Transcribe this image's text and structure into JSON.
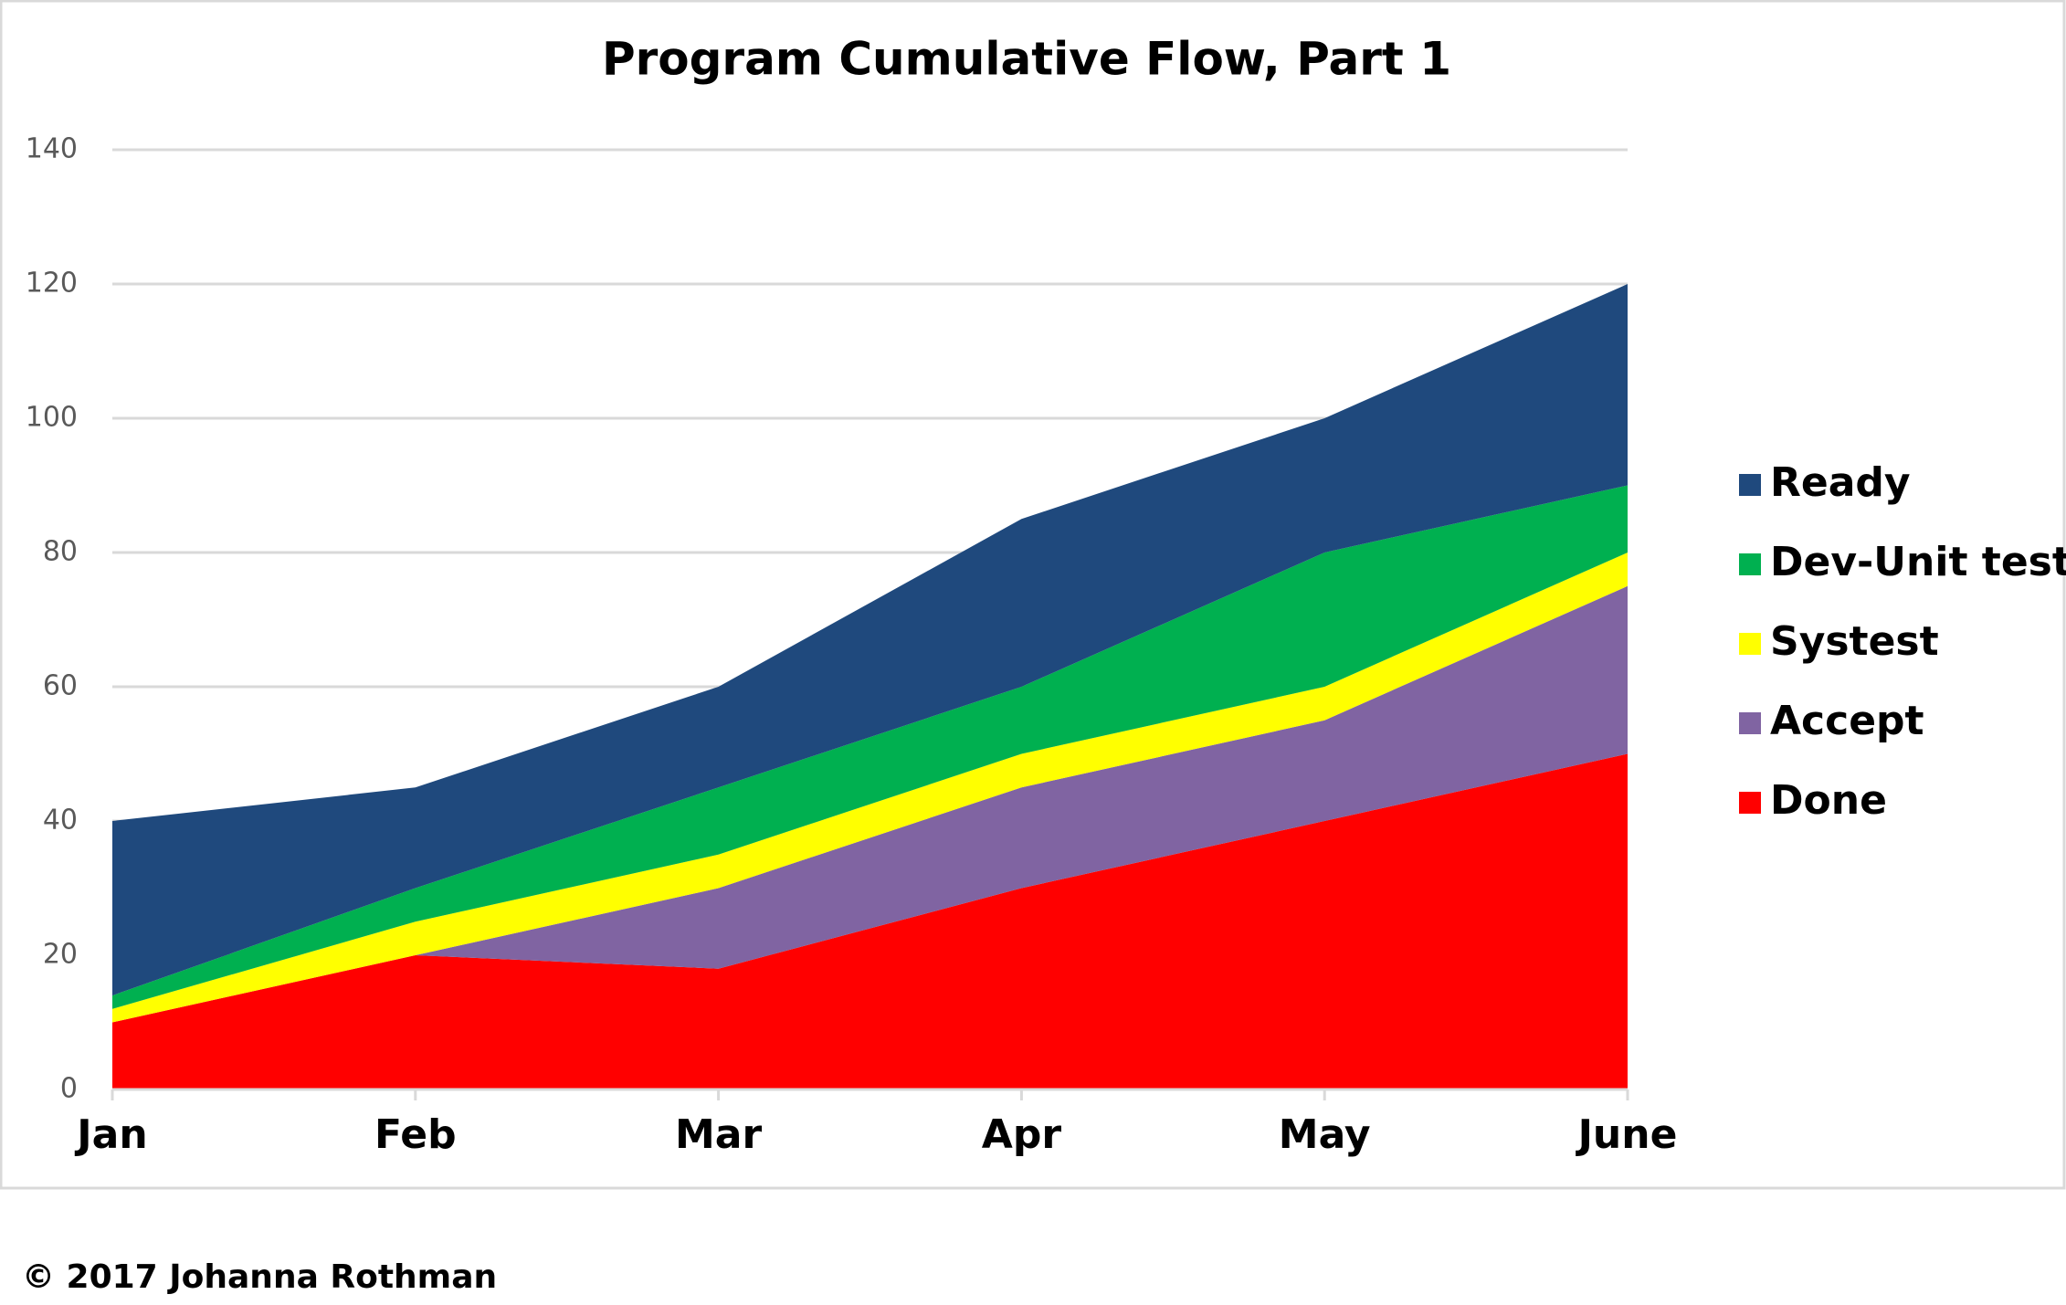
{
  "chart_data": {
    "type": "stacked-area",
    "title": "Program Cumulative Flow, Part 1",
    "categories": [
      "Jan",
      "Feb",
      "Mar",
      "Apr",
      "May",
      "June"
    ],
    "series": [
      {
        "name": "Done",
        "color": "#ff0000",
        "values": [
          10,
          20,
          18,
          30,
          40,
          50
        ]
      },
      {
        "name": "Accept",
        "color": "#8064a2",
        "values": [
          0,
          0,
          12,
          15,
          15,
          25
        ]
      },
      {
        "name": "Systest",
        "color": "#ffff00",
        "values": [
          2,
          5,
          5,
          5,
          5,
          5
        ]
      },
      {
        "name": "Dev-Unit test",
        "color": "#00b050",
        "values": [
          2,
          5,
          10,
          10,
          20,
          10
        ]
      },
      {
        "name": "Ready",
        "color": "#1f497d",
        "values": [
          26,
          15,
          15,
          25,
          20,
          30
        ]
      }
    ],
    "ylim": [
      0,
      140
    ],
    "yticks": [
      0,
      20,
      40,
      60,
      80,
      100,
      120,
      140
    ],
    "grid": true,
    "legend": "right"
  },
  "footer": "© 2017 Johanna Rothman"
}
